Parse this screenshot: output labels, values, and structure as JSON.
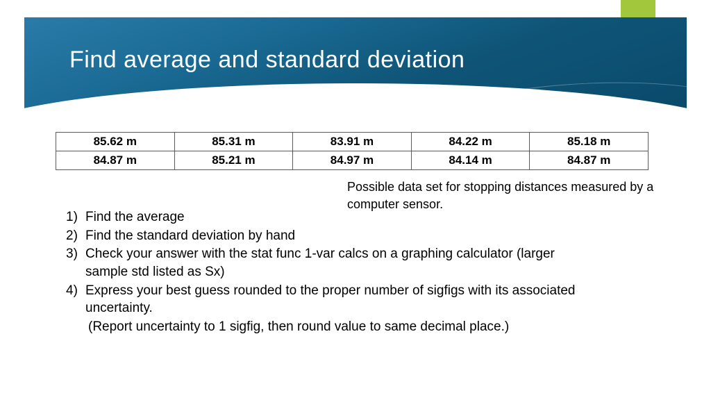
{
  "title": "Find average and standard deviation",
  "colors": {
    "accent": "#a2c73c",
    "accent_fold": "#7a9a2e",
    "header_gradient_start": "#2a7ba8",
    "header_gradient_end": "#0a4a6b",
    "text": "#000000",
    "title_text": "#ffffff",
    "border": "#595959",
    "background": "#ffffff"
  },
  "table": {
    "rows": [
      [
        "85.62 m",
        "85.31 m",
        "83.91 m",
        "84.22 m",
        "85.18 m"
      ],
      [
        "84.87 m",
        "85.21 m",
        "84.97 m",
        "84.14 m",
        "84.87 m"
      ]
    ],
    "cell_fontsize": 17,
    "cell_fontweight": "bold"
  },
  "caption": "Possible data set for stopping distances measured by a computer sensor.",
  "instructions": [
    {
      "num": "1)",
      "text": "Find the average"
    },
    {
      "num": "2)",
      "text": "Find the standard deviation by hand"
    },
    {
      "num": "3)",
      "text": "Check your answer with the stat func 1-var calcs on a graphing calculator (larger sample std listed as Sx)"
    },
    {
      "num": "4)",
      "text": "Express your best guess rounded to the proper number of sigfigs with its associated uncertainty."
    }
  ],
  "instruction_sub": "(Report uncertainty to 1 sigfig, then round value to same decimal place.)",
  "typography": {
    "title_fontsize": 34,
    "body_fontsize": 19,
    "caption_fontsize": 18,
    "font_family": "Century Gothic"
  }
}
